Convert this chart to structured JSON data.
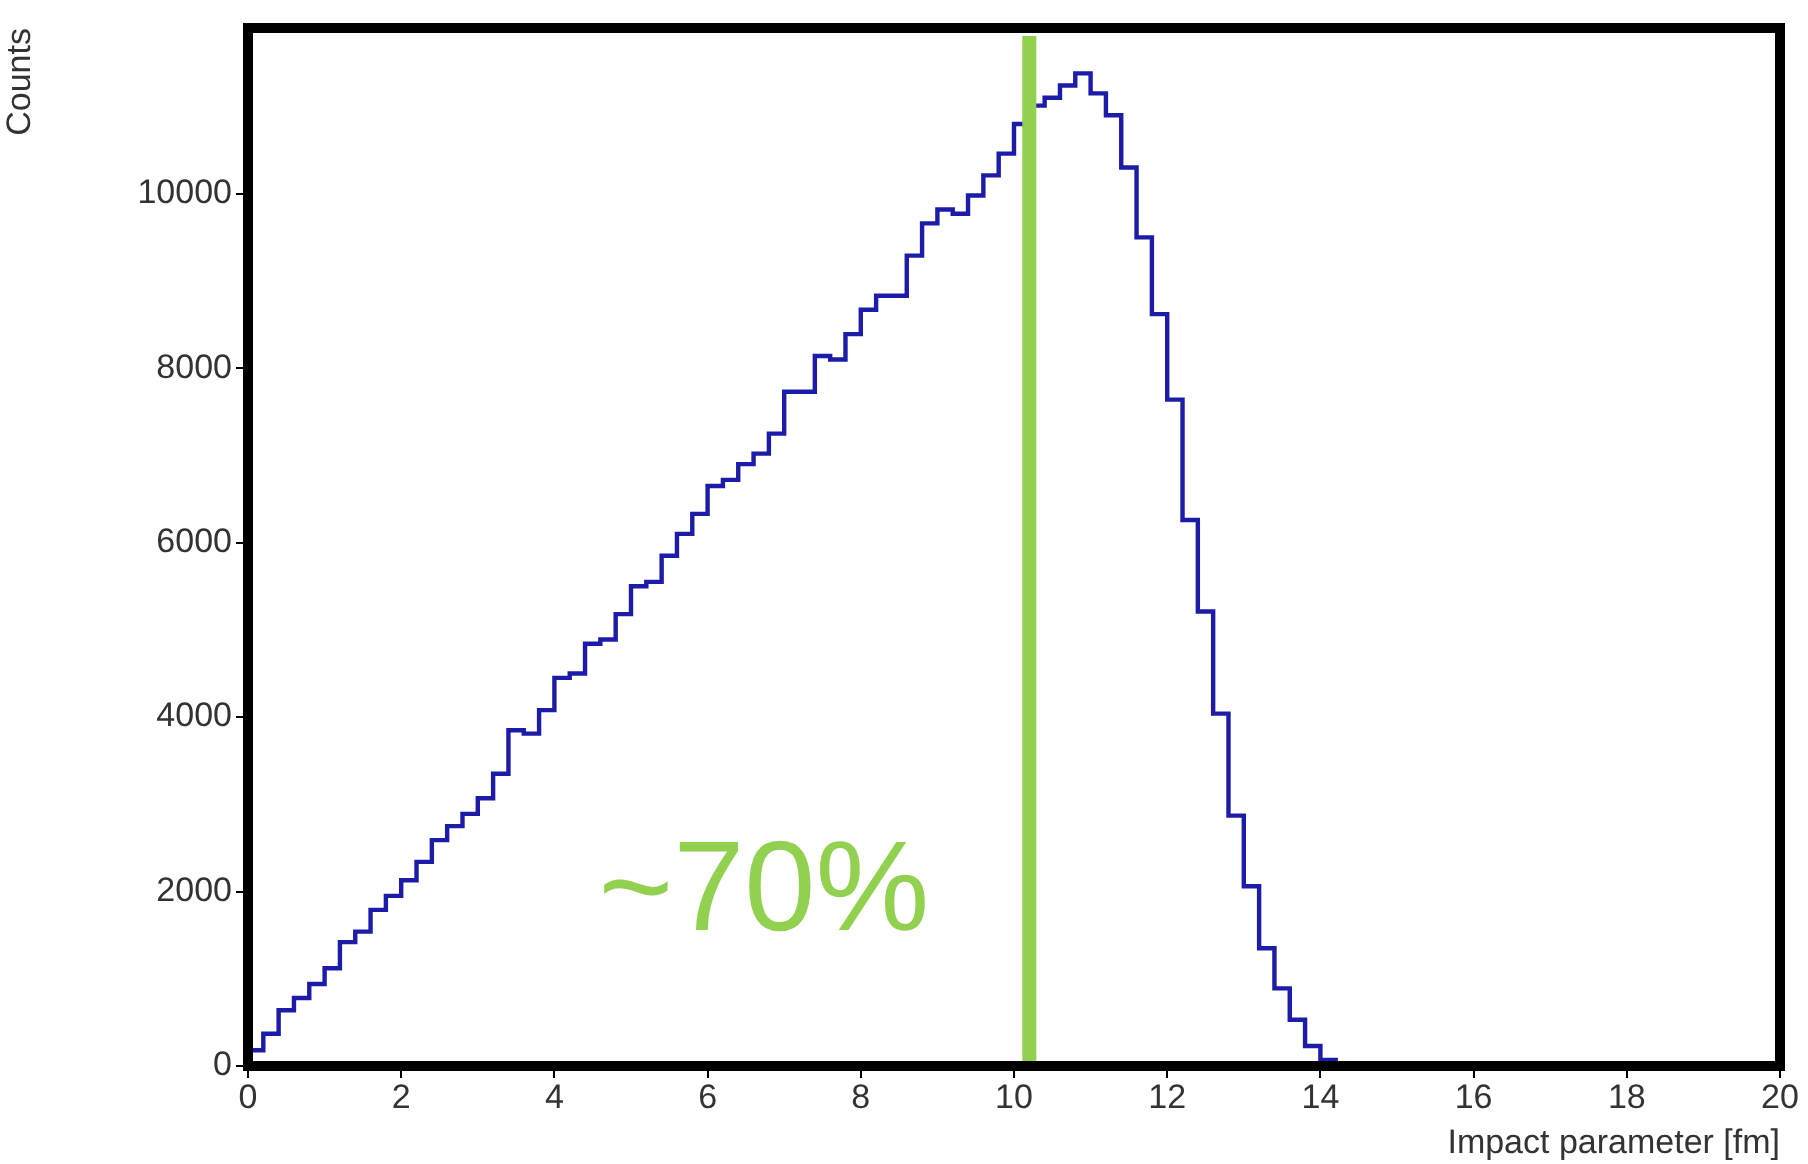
{
  "chart_data": {
    "type": "histogram",
    "xlabel": "Impact parameter [fm]",
    "ylabel": "Counts",
    "color": "#1c1ca8",
    "bins": [
      0,
      0.2,
      0.4,
      0.6,
      0.8,
      1,
      1.2,
      1.4,
      1.6,
      1.8,
      2,
      2.2,
      2.4,
      2.6,
      2.8,
      3,
      3.2,
      3.4,
      3.6,
      3.8,
      4,
      4.2,
      4.4,
      4.6,
      4.8,
      5,
      5.2,
      5.4,
      5.6,
      5.8,
      6,
      6.2,
      6.4,
      6.6,
      6.8,
      7,
      7.2,
      7.4,
      7.6,
      7.8,
      8,
      8.2,
      8.4,
      8.6,
      8.8,
      9,
      9.2,
      9.4,
      9.6,
      9.8,
      10,
      10.2,
      10.4,
      10.6,
      10.8,
      11,
      11.2,
      11.4,
      11.6,
      11.8,
      12,
      12.2,
      12.4,
      12.6,
      12.8,
      13,
      13.2,
      13.4,
      13.6,
      13.8,
      14,
      14.2,
      14.4,
      14.6,
      14.8,
      15,
      15.2,
      15.4,
      15.6,
      15.8,
      16,
      16.2,
      16.4,
      16.6,
      16.8,
      17,
      17.2,
      17.4,
      17.6,
      17.8,
      18,
      18.2,
      18.4,
      18.6,
      18.8,
      19,
      19.2,
      19.4,
      19.6,
      19.8,
      20
    ],
    "values": [
      180,
      370,
      640,
      780,
      940,
      1120,
      1420,
      1540,
      1790,
      1950,
      2130,
      2340,
      2590,
      2750,
      2890,
      3070,
      3350,
      3850,
      3810,
      4080,
      4450,
      4500,
      4840,
      4890,
      5180,
      5500,
      5550,
      5850,
      6100,
      6330,
      6650,
      6720,
      6900,
      7020,
      7250,
      7730,
      7730,
      8140,
      8100,
      8390,
      8670,
      8830,
      8830,
      9290,
      9660,
      9820,
      9770,
      9980,
      10210,
      10460,
      10800,
      11010,
      11100,
      11240,
      11380,
      11150,
      10900,
      10300,
      9500,
      8620,
      7640,
      6260,
      5210,
      4040,
      2870,
      2060,
      1350,
      890,
      530,
      230,
      70,
      20,
      0,
      0,
      0,
      0,
      0,
      0,
      0,
      0,
      0,
      0,
      0,
      0,
      0,
      0,
      0,
      0,
      0,
      0,
      0,
      0,
      0,
      0,
      0,
      0,
      0,
      0,
      0,
      0
    ],
    "xlim": [
      0,
      20
    ],
    "xticks": [
      0,
      2,
      4,
      6,
      8,
      10,
      12,
      14,
      16,
      18,
      20
    ],
    "ylim": [
      0,
      11900
    ],
    "yticks": [
      0,
      2000,
      4000,
      6000,
      8000,
      10000
    ],
    "grid": false,
    "legend": false,
    "ref_lines": [
      {
        "axis": "x",
        "value": 10.2,
        "color": "#92d050"
      }
    ],
    "annotations": [
      "~70%"
    ]
  }
}
